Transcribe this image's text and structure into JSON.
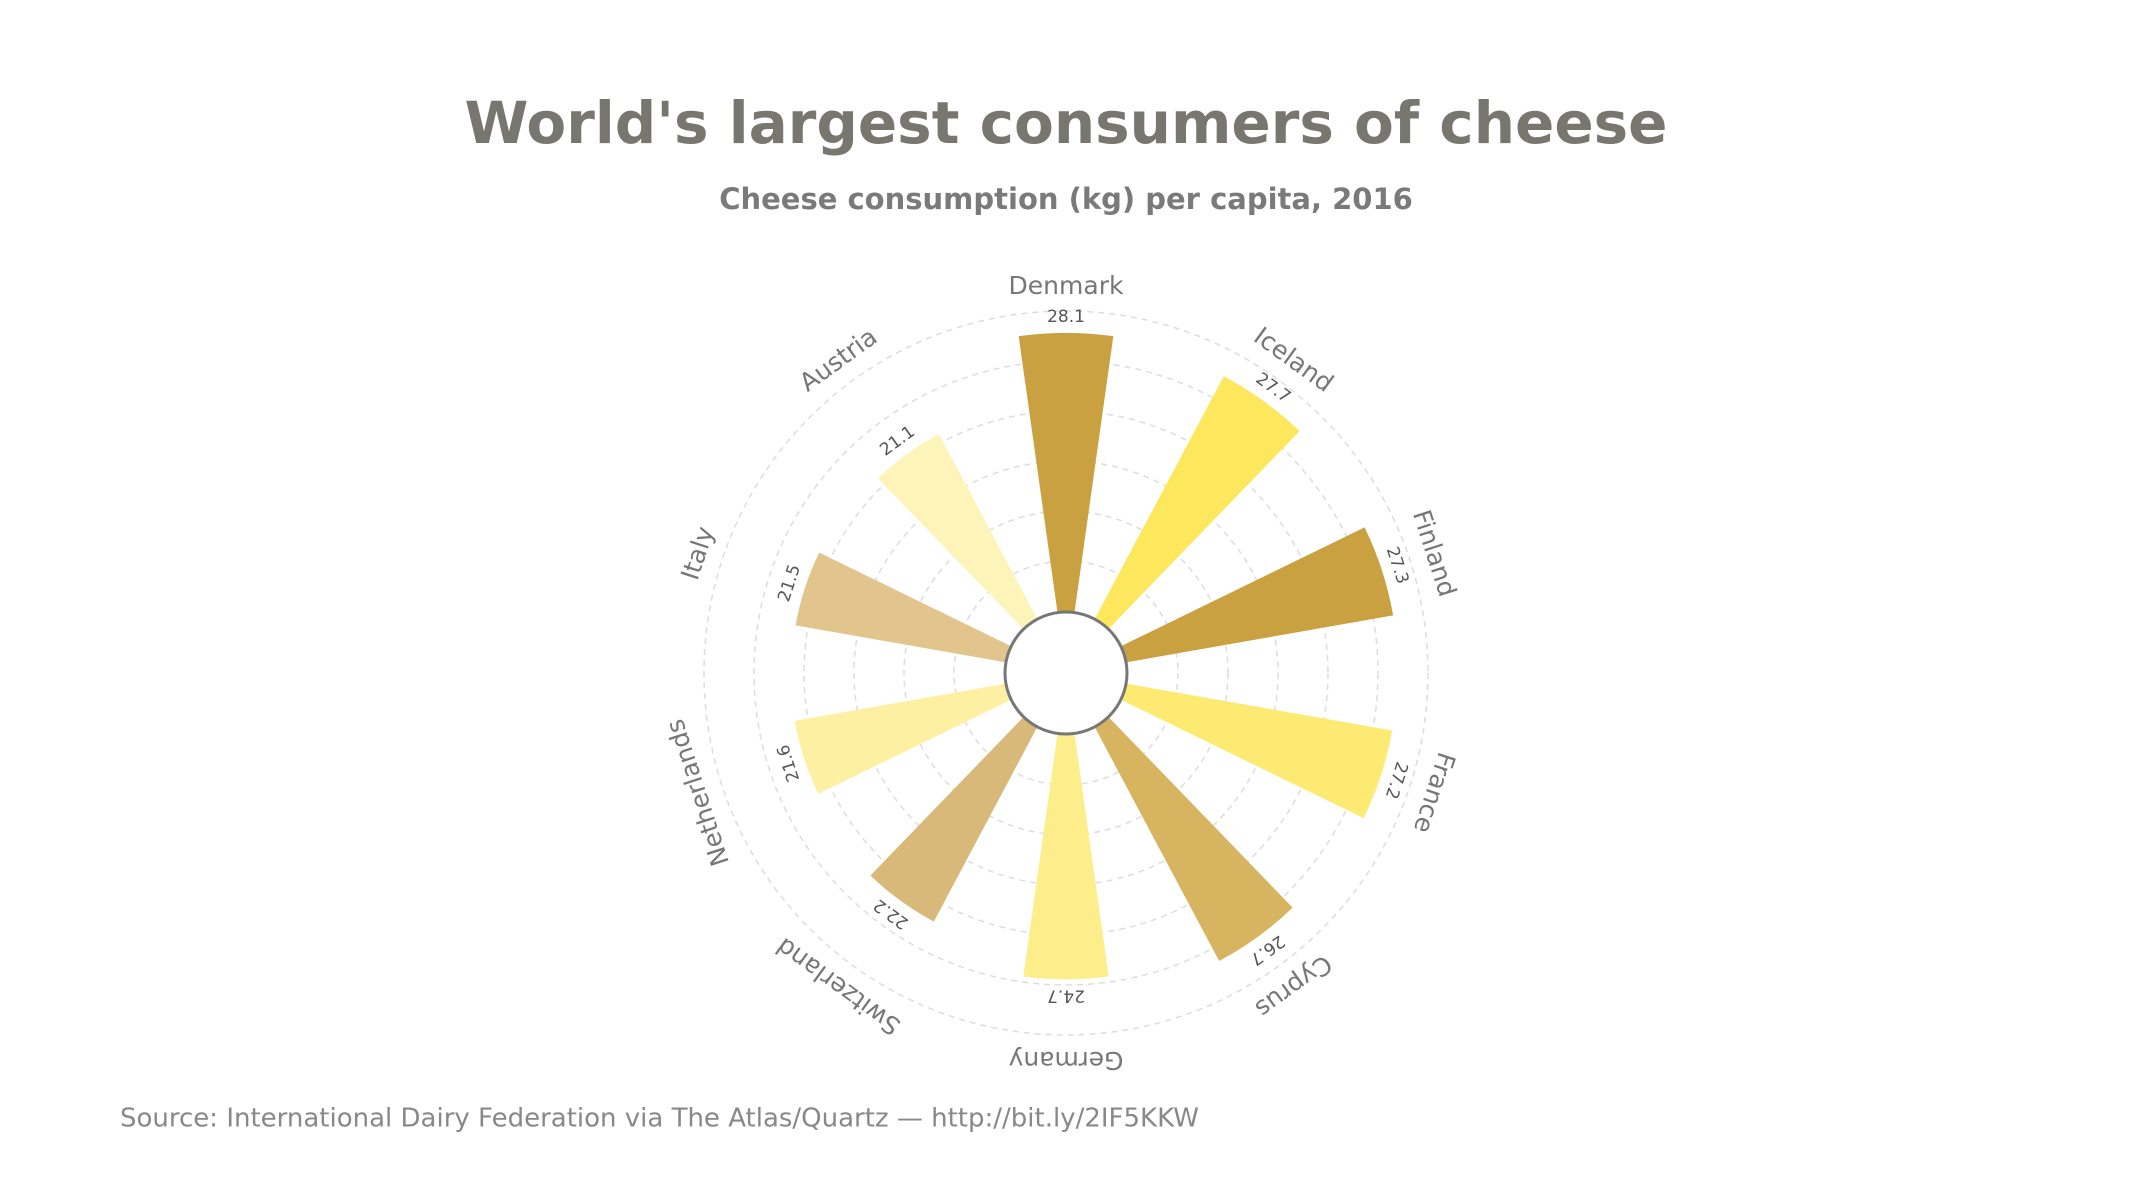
{
  "chart_data": {
    "type": "radial-bar",
    "title": "World's largest consumers of cheese",
    "subtitle": "Cheese consumption (kg) per capita, 2016",
    "source": "Source: International Dairy Federation via The Atlas/Quartz — http://bit.ly/2IF5KKW",
    "categories": [
      "Denmark",
      "Iceland",
      "Finland",
      "France",
      "Cyprus",
      "Germany",
      "Switzerland",
      "Netherlands",
      "Italy",
      "Austria"
    ],
    "values": [
      28.1,
      27.7,
      27.3,
      27.2,
      26.7,
      24.7,
      22.2,
      21.6,
      21.5,
      21.1
    ],
    "colors": [
      "#c9a141",
      "#fde75c",
      "#c9a141",
      "#fdea73",
      "#d6b460",
      "#fdee8b",
      "#d9b97a",
      "#fdf0a2",
      "#e1c58c",
      "#fdf4ba"
    ],
    "rlim": [
      0,
      30
    ]
  }
}
